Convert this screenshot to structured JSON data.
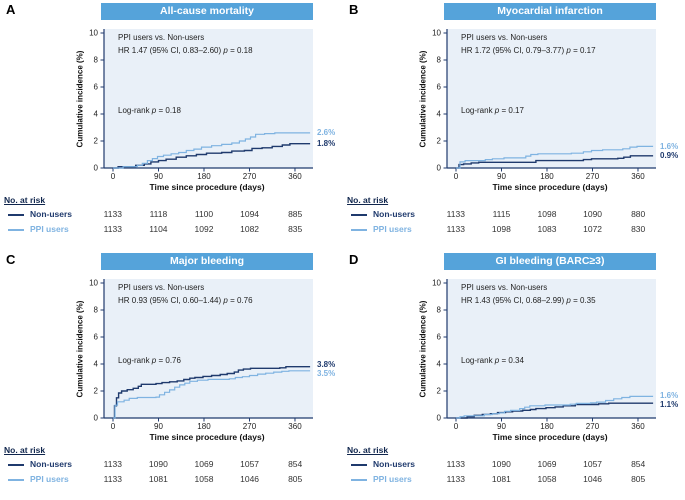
{
  "strings": {
    "p_char": "p",
    "at_risk_header": "No. at risk",
    "xlabel": "Time since procedure (days)",
    "ylabel": "Cumulative incidence (%)"
  },
  "colors": {
    "header_bg": "#55A3DA",
    "header_text": "#FFFFFF",
    "plot_bg": "#E9F0F8",
    "axis": "#1F3A6D",
    "non_users": "#1F3A6D",
    "ppi_users": "#7FB3E1",
    "tick_text": "#222222"
  },
  "series_legend": [
    {
      "key": "non",
      "name": "Non-users"
    },
    {
      "key": "ppi",
      "name": "PPI users"
    }
  ],
  "panels": [
    {
      "label": "A",
      "title": "All-cause mortality",
      "comparison": "PPI users vs. Non-users",
      "hr_pre": "HR 1.47 (95% CI, 0.83–2.60) ",
      "hr_post": " = 0.18",
      "lr_pre": "Log-rank ",
      "lr_post": " = 0.18",
      "end_ppi": "2.6%",
      "end_non": "1.8%",
      "at_risk": {
        "non": [
          1133,
          1118,
          1100,
          1094,
          885
        ],
        "ppi": [
          1133,
          1104,
          1092,
          1082,
          835
        ]
      }
    },
    {
      "label": "B",
      "title": "Myocardial infarction",
      "comparison": "PPI users vs. Non-users",
      "hr_pre": "HR 1.72 (95% CI, 0.79–3.77) ",
      "hr_post": " = 0.17",
      "lr_pre": "Log-rank ",
      "lr_post": " = 0.17",
      "end_ppi": "1.6%",
      "end_non": "0.9%",
      "at_risk": {
        "non": [
          1133,
          1115,
          1098,
          1090,
          880
        ],
        "ppi": [
          1133,
          1098,
          1083,
          1072,
          830
        ]
      }
    },
    {
      "label": "C",
      "title": "Major bleeding",
      "comparison": "PPI users vs. Non-users",
      "hr_pre": "HR 0.93 (95% CI, 0.60–1.44) ",
      "hr_post": " = 0.76",
      "lr_pre": "Log-rank ",
      "lr_post": " = 0.76",
      "end_ppi": "3.5%",
      "end_non": "3.8%",
      "at_risk": {
        "non": [
          1133,
          1090,
          1069,
          1057,
          854
        ],
        "ppi": [
          1133,
          1081,
          1058,
          1046,
          805
        ]
      }
    },
    {
      "label": "D",
      "title": "GI bleeding (BARC≥3)",
      "comparison": "PPI users vs. Non-users",
      "hr_pre": "HR 1.43 (95% CI, 0.68–2.99) ",
      "hr_post": " = 0.35",
      "lr_pre": "Log-rank ",
      "lr_post": " = 0.34",
      "end_ppi": "1.6%",
      "end_non": "1.1%",
      "at_risk": {
        "non": [
          1133,
          1090,
          1069,
          1057,
          854
        ],
        "ppi": [
          1133,
          1081,
          1058,
          1046,
          805
        ]
      }
    }
  ],
  "chart_data": [
    {
      "type": "line",
      "step": true,
      "title": "All-cause mortality",
      "xlabel": "Time since procedure (days)",
      "ylabel": "Cumulative incidence (%)",
      "xlim": [
        0,
        395
      ],
      "ylim": [
        0,
        10
      ],
      "xticks": [
        0,
        90,
        180,
        270,
        360
      ],
      "yticks": [
        0,
        2,
        4,
        6,
        8,
        10
      ],
      "series": [
        {
          "key": "non",
          "name": "Non-users",
          "points": [
            [
              0,
              0
            ],
            [
              10,
              0.1
            ],
            [
              45,
              0.2
            ],
            [
              62,
              0.3
            ],
            [
              75,
              0.45
            ],
            [
              90,
              0.55
            ],
            [
              105,
              0.65
            ],
            [
              125,
              0.8
            ],
            [
              145,
              0.9
            ],
            [
              165,
              1.0
            ],
            [
              185,
              1.1
            ],
            [
              215,
              1.15
            ],
            [
              235,
              1.25
            ],
            [
              260,
              1.3
            ],
            [
              275,
              1.45
            ],
            [
              295,
              1.5
            ],
            [
              315,
              1.6
            ],
            [
              335,
              1.7
            ],
            [
              350,
              1.8
            ],
            [
              390,
              1.8
            ]
          ]
        },
        {
          "key": "ppi",
          "name": "PPI users",
          "points": [
            [
              0,
              0
            ],
            [
              20,
              0.1
            ],
            [
              48,
              0.2
            ],
            [
              58,
              0.35
            ],
            [
              68,
              0.55
            ],
            [
              78,
              0.7
            ],
            [
              88,
              0.85
            ],
            [
              100,
              0.95
            ],
            [
              115,
              1.05
            ],
            [
              130,
              1.15
            ],
            [
              145,
              1.3
            ],
            [
              160,
              1.4
            ],
            [
              175,
              1.55
            ],
            [
              195,
              1.65
            ],
            [
              215,
              1.75
            ],
            [
              235,
              1.85
            ],
            [
              250,
              2.0
            ],
            [
              262,
              2.15
            ],
            [
              272,
              2.3
            ],
            [
              282,
              2.5
            ],
            [
              300,
              2.55
            ],
            [
              320,
              2.6
            ],
            [
              390,
              2.6
            ]
          ]
        }
      ]
    },
    {
      "type": "line",
      "step": true,
      "title": "Myocardial infarction",
      "xlabel": "Time since procedure (days)",
      "ylabel": "Cumulative incidence (%)",
      "xlim": [
        0,
        395
      ],
      "ylim": [
        0,
        10
      ],
      "xticks": [
        0,
        90,
        180,
        270,
        360
      ],
      "yticks": [
        0,
        2,
        4,
        6,
        8,
        10
      ],
      "series": [
        {
          "key": "non",
          "name": "Non-users",
          "points": [
            [
              0,
              0
            ],
            [
              6,
              0.25
            ],
            [
              15,
              0.3
            ],
            [
              30,
              0.38
            ],
            [
              45,
              0.42
            ],
            [
              150,
              0.42
            ],
            [
              158,
              0.55
            ],
            [
              245,
              0.55
            ],
            [
              252,
              0.62
            ],
            [
              268,
              0.68
            ],
            [
              320,
              0.72
            ],
            [
              332,
              0.8
            ],
            [
              345,
              0.9
            ],
            [
              390,
              0.9
            ]
          ]
        },
        {
          "key": "ppi",
          "name": "PPI users",
          "points": [
            [
              0,
              0
            ],
            [
              8,
              0.45
            ],
            [
              18,
              0.55
            ],
            [
              58,
              0.62
            ],
            [
              72,
              0.68
            ],
            [
              95,
              0.75
            ],
            [
              138,
              0.88
            ],
            [
              148,
              1.0
            ],
            [
              162,
              1.05
            ],
            [
              228,
              1.1
            ],
            [
              252,
              1.2
            ],
            [
              268,
              1.3
            ],
            [
              290,
              1.35
            ],
            [
              330,
              1.42
            ],
            [
              344,
              1.55
            ],
            [
              358,
              1.6
            ],
            [
              390,
              1.6
            ]
          ]
        }
      ]
    },
    {
      "type": "line",
      "step": true,
      "title": "Major bleeding",
      "xlabel": "Time since procedure (days)",
      "ylabel": "Cumulative incidence (%)",
      "xlim": [
        0,
        395
      ],
      "ylim": [
        0,
        10
      ],
      "xticks": [
        0,
        90,
        180,
        270,
        360
      ],
      "yticks": [
        0,
        2,
        4,
        6,
        8,
        10
      ],
      "series": [
        {
          "key": "non",
          "name": "Non-users",
          "points": [
            [
              0,
              0
            ],
            [
              3,
              0.9
            ],
            [
              7,
              1.5
            ],
            [
              11,
              1.85
            ],
            [
              17,
              2.0
            ],
            [
              28,
              2.1
            ],
            [
              40,
              2.2
            ],
            [
              50,
              2.35
            ],
            [
              56,
              2.5
            ],
            [
              85,
              2.55
            ],
            [
              97,
              2.62
            ],
            [
              112,
              2.68
            ],
            [
              127,
              2.75
            ],
            [
              140,
              2.85
            ],
            [
              152,
              2.95
            ],
            [
              162,
              3.0
            ],
            [
              178,
              3.08
            ],
            [
              195,
              3.15
            ],
            [
              212,
              3.22
            ],
            [
              226,
              3.3
            ],
            [
              240,
              3.4
            ],
            [
              248,
              3.55
            ],
            [
              258,
              3.62
            ],
            [
              272,
              3.68
            ],
            [
              330,
              3.72
            ],
            [
              342,
              3.8
            ],
            [
              390,
              3.8
            ]
          ]
        },
        {
          "key": "ppi",
          "name": "PPI users",
          "points": [
            [
              0,
              0
            ],
            [
              4,
              0.95
            ],
            [
              9,
              1.2
            ],
            [
              22,
              1.32
            ],
            [
              32,
              1.45
            ],
            [
              48,
              1.52
            ],
            [
              85,
              1.55
            ],
            [
              92,
              1.72
            ],
            [
              102,
              1.9
            ],
            [
              112,
              2.08
            ],
            [
              122,
              2.28
            ],
            [
              132,
              2.45
            ],
            [
              142,
              2.58
            ],
            [
              152,
              2.72
            ],
            [
              167,
              2.8
            ],
            [
              188,
              2.86
            ],
            [
              230,
              2.9
            ],
            [
              242,
              3.0
            ],
            [
              256,
              3.06
            ],
            [
              270,
              3.15
            ],
            [
              286,
              3.25
            ],
            [
              302,
              3.32
            ],
            [
              318,
              3.4
            ],
            [
              334,
              3.46
            ],
            [
              348,
              3.5
            ],
            [
              390,
              3.5
            ]
          ]
        }
      ]
    },
    {
      "type": "line",
      "step": true,
      "title": "GI bleeding (BARC≥3)",
      "xlabel": "Time since procedure (days)",
      "ylabel": "Cumulative incidence (%)",
      "xlim": [
        0,
        395
      ],
      "ylim": [
        0,
        10
      ],
      "xticks": [
        0,
        90,
        180,
        270,
        360
      ],
      "yticks": [
        0,
        2,
        4,
        6,
        8,
        10
      ],
      "series": [
        {
          "key": "non",
          "name": "Non-users",
          "points": [
            [
              0,
              0
            ],
            [
              22,
              0.1
            ],
            [
              36,
              0.2
            ],
            [
              52,
              0.27
            ],
            [
              68,
              0.32
            ],
            [
              82,
              0.4
            ],
            [
              98,
              0.46
            ],
            [
              112,
              0.52
            ],
            [
              132,
              0.57
            ],
            [
              147,
              0.63
            ],
            [
              158,
              0.7
            ],
            [
              178,
              0.76
            ],
            [
              196,
              0.82
            ],
            [
              212,
              0.9
            ],
            [
              236,
              1.0
            ],
            [
              282,
              1.05
            ],
            [
              302,
              1.1
            ],
            [
              390,
              1.1
            ]
          ]
        },
        {
          "key": "ppi",
          "name": "PPI users",
          "points": [
            [
              0,
              0
            ],
            [
              8,
              0.1
            ],
            [
              16,
              0.16
            ],
            [
              56,
              0.26
            ],
            [
              72,
              0.32
            ],
            [
              86,
              0.38
            ],
            [
              96,
              0.5
            ],
            [
              108,
              0.56
            ],
            [
              126,
              0.7
            ],
            [
              136,
              0.8
            ],
            [
              146,
              0.9
            ],
            [
              176,
              0.96
            ],
            [
              226,
              1.02
            ],
            [
              238,
              1.08
            ],
            [
              266,
              1.12
            ],
            [
              278,
              1.18
            ],
            [
              296,
              1.3
            ],
            [
              312,
              1.42
            ],
            [
              328,
              1.52
            ],
            [
              344,
              1.6
            ],
            [
              390,
              1.6
            ]
          ]
        }
      ]
    }
  ]
}
